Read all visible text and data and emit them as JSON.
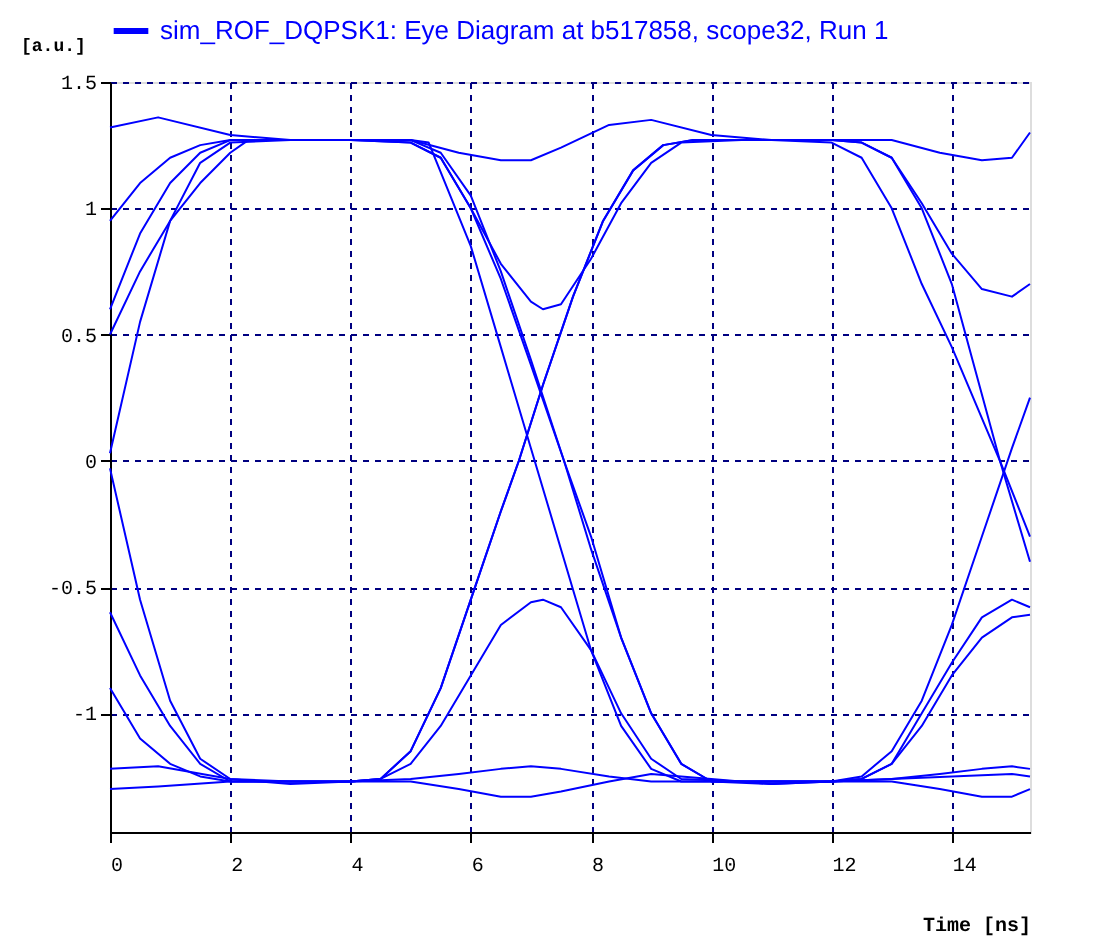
{
  "chart_data": {
    "type": "line",
    "xlabel": "Time [ns]",
    "ylabel": "[a.u.]",
    "xlim": [
      0,
      15.3
    ],
    "ylim": [
      -1.47,
      1.5
    ],
    "xticks": [
      0,
      2,
      4,
      6,
      8,
      10,
      12,
      14
    ],
    "yticks": [
      -1,
      -0.5,
      0,
      0.5,
      1,
      1.5
    ],
    "grid": true,
    "legend": "top",
    "line_style": "solid",
    "marker": "none",
    "series": [
      {
        "name": "sim_ROF_DQPSK1: Eye Diagram at b517858, scope32, Run 1",
        "color": "#0000ff",
        "x": [
          0,
          0.8,
          2,
          3,
          4,
          5,
          5.8,
          6.5,
          7,
          7.5,
          8.3,
          9,
          10,
          11,
          12,
          13,
          13.8,
          14.5,
          15,
          15.3
        ],
        "values": [
          1.32,
          1.36,
          1.29,
          1.27,
          1.27,
          1.27,
          1.22,
          1.19,
          1.19,
          1.24,
          1.33,
          1.35,
          1.29,
          1.27,
          1.27,
          1.27,
          1.22,
          1.19,
          1.2,
          1.3
        ]
      },
      {
        "color": "#0000ff",
        "x": [
          0,
          0.8,
          2,
          3,
          4,
          5,
          5.8,
          6.5,
          7,
          7.5,
          8.3,
          9,
          10,
          11,
          12,
          13,
          13.8,
          14.5,
          15,
          15.3
        ],
        "values": [
          -1.22,
          -1.21,
          -1.26,
          -1.28,
          -1.27,
          -1.27,
          -1.3,
          -1.33,
          -1.33,
          -1.31,
          -1.27,
          -1.24,
          -1.26,
          -1.28,
          -1.27,
          -1.27,
          -1.3,
          -1.33,
          -1.33,
          -1.3
        ]
      },
      {
        "color": "#0000ff",
        "x": [
          0,
          0.8,
          2,
          3,
          4,
          5,
          5.8,
          6.5,
          7,
          7.5,
          8.3,
          9,
          10,
          11,
          12,
          13,
          13.8,
          14.5,
          15,
          15.3
        ],
        "values": [
          -1.3,
          -1.29,
          -1.27,
          -1.27,
          -1.27,
          -1.26,
          -1.24,
          -1.22,
          -1.21,
          -1.22,
          -1.25,
          -1.27,
          -1.27,
          -1.27,
          -1.27,
          -1.26,
          -1.24,
          -1.22,
          -1.21,
          -1.22
        ]
      },
      {
        "color": "#0000ff",
        "x": [
          0,
          0.5,
          1,
          1.5,
          2,
          3,
          4,
          5,
          5.5,
          6,
          6.5,
          7,
          7.55,
          8,
          8.5,
          9,
          9.5,
          10,
          11,
          12,
          12.5,
          13,
          13.5,
          14,
          14.5,
          15,
          15.3
        ],
        "values": [
          0.03,
          0.55,
          0.95,
          1.18,
          1.26,
          1.27,
          1.27,
          1.26,
          1.2,
          1.0,
          0.72,
          0.38,
          0,
          -0.3,
          -0.7,
          -1.0,
          -1.2,
          -1.27,
          -1.28,
          -1.27,
          -1.25,
          -1.15,
          -0.95,
          -0.65,
          -0.3,
          0.05,
          0.25
        ]
      },
      {
        "color": "#0000ff",
        "x": [
          0,
          0.5,
          1,
          1.5,
          2,
          3,
          4,
          4.5,
          5,
          5.5,
          6,
          6.5,
          6.8,
          7.2,
          7.7,
          8.2,
          8.7,
          9.2,
          9.7,
          10.5,
          11,
          12,
          12.5,
          13,
          13.5,
          14,
          14.8,
          15.3
        ],
        "values": [
          -0.03,
          -0.55,
          -0.95,
          -1.18,
          -1.26,
          -1.27,
          -1.27,
          -1.26,
          -1.15,
          -0.9,
          -0.55,
          -0.2,
          0,
          0.3,
          0.65,
          0.95,
          1.15,
          1.25,
          1.27,
          1.27,
          1.27,
          1.26,
          1.2,
          1.0,
          0.7,
          0.45,
          0,
          -0.3
        ]
      },
      {
        "color": "#0000ff",
        "x": [
          0,
          0.5,
          1,
          1.5,
          2,
          3,
          4,
          5,
          5.5,
          6,
          6.5,
          7,
          7.2,
          7.5,
          8,
          8.5,
          9,
          9.5,
          10.5,
          11,
          12,
          12.5,
          13,
          13.5,
          14,
          14.8,
          15.3
        ],
        "values": [
          0.6,
          0.9,
          1.1,
          1.22,
          1.27,
          1.27,
          1.27,
          1.26,
          1.2,
          1.0,
          0.78,
          0.63,
          0.6,
          0.62,
          0.8,
          1.02,
          1.18,
          1.26,
          1.27,
          1.27,
          1.27,
          1.26,
          1.2,
          1.0,
          0.7,
          0,
          -0.4
        ]
      },
      {
        "color": "#0000ff",
        "x": [
          0,
          0.5,
          1,
          1.5,
          2,
          3,
          4,
          4.5,
          5,
          5.5,
          6,
          6.5,
          7,
          7.2,
          7.5,
          8,
          8.5,
          9,
          9.5,
          10.5,
          12,
          12.5,
          13,
          13.5,
          14,
          14.5,
          15,
          15.3
        ],
        "values": [
          -0.6,
          -0.85,
          -1.05,
          -1.2,
          -1.27,
          -1.27,
          -1.27,
          -1.26,
          -1.2,
          -1.05,
          -0.85,
          -0.65,
          -0.56,
          -0.55,
          -0.58,
          -0.75,
          -1.0,
          -1.18,
          -1.26,
          -1.27,
          -1.27,
          -1.26,
          -1.2,
          -1.0,
          -0.8,
          -0.62,
          -0.55,
          -0.58
        ]
      },
      {
        "color": "#0000ff",
        "x": [
          0,
          0.5,
          1,
          1.5,
          2,
          3,
          4,
          5,
          5.5,
          6,
          6.5,
          7,
          7.55,
          8,
          8.5,
          9,
          9.5,
          10,
          11,
          12,
          12.5,
          13,
          13.5,
          14,
          14.5,
          15,
          15.3
        ],
        "values": [
          0.95,
          1.1,
          1.2,
          1.25,
          1.27,
          1.27,
          1.27,
          1.27,
          1.22,
          1.05,
          0.75,
          0.4,
          0,
          -0.35,
          -0.7,
          -1.0,
          -1.2,
          -1.27,
          -1.27,
          -1.27,
          -1.26,
          -1.2,
          -1.05,
          -0.85,
          -0.7,
          -0.62,
          -0.61
        ]
      },
      {
        "color": "#0000ff",
        "x": [
          0,
          0.5,
          1,
          1.5,
          2,
          3,
          4,
          4.5,
          5,
          5.5,
          6,
          6.5,
          6.8,
          7.2,
          7.7,
          8.2,
          8.7,
          9.2,
          9.7,
          10.5,
          12,
          12.5,
          13,
          13.5,
          14,
          14.5,
          15,
          15.3
        ],
        "values": [
          -0.9,
          -1.1,
          -1.2,
          -1.25,
          -1.27,
          -1.27,
          -1.27,
          -1.26,
          -1.15,
          -0.9,
          -0.55,
          -0.2,
          0,
          0.3,
          0.65,
          0.95,
          1.15,
          1.25,
          1.27,
          1.27,
          1.27,
          1.26,
          1.2,
          1.02,
          0.82,
          0.68,
          0.65,
          0.7
        ]
      },
      {
        "color": "#0000ff",
        "x": [
          0,
          0.5,
          1,
          1.5,
          2,
          2.3,
          3,
          4,
          5,
          5.3,
          6,
          6.5,
          7,
          7.5,
          8,
          8.5,
          9,
          9.5,
          10,
          11,
          12,
          13,
          14,
          15,
          15.3
        ],
        "values": [
          0.5,
          0.75,
          0.95,
          1.1,
          1.22,
          1.27,
          1.27,
          1.27,
          1.27,
          1.26,
          0.85,
          0.45,
          0.05,
          -0.35,
          -0.75,
          -1.05,
          -1.22,
          -1.27,
          -1.27,
          -1.27,
          -1.27,
          -1.26,
          -1.25,
          -1.24,
          -1.25
        ]
      }
    ]
  }
}
